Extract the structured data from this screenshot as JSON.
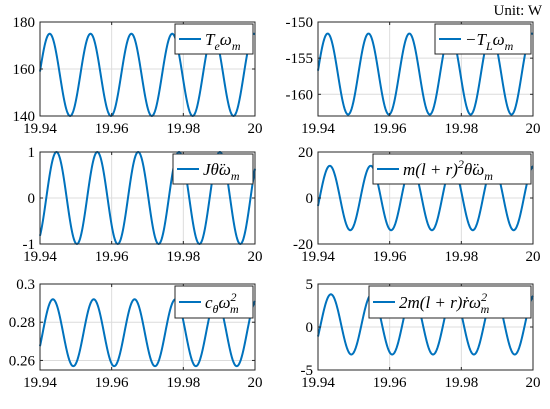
{
  "unit_label": "Unit: W",
  "series_color": "#0072BD",
  "chart_data": [
    {
      "type": "line",
      "legend": "T_e ω_m",
      "legend_parts": [
        {
          "t": "T"
        },
        {
          "t": "e",
          "sub": true
        },
        {
          "t": "ω"
        },
        {
          "t": "m",
          "sub": true
        }
      ],
      "xlim": [
        19.94,
        20.0
      ],
      "ylim": [
        140,
        180
      ],
      "xticks": [
        "19.94",
        "19.96",
        "19.98",
        "20"
      ],
      "xtick_values": [
        19.94,
        19.96,
        19.98,
        20.0
      ],
      "yticks": [
        "140",
        "160",
        "180"
      ],
      "ytick_values": [
        140,
        160,
        180
      ],
      "waveform": {
        "mean": 157.5,
        "amplitude": 17.5,
        "period": 0.0114,
        "peak_x": 19.9427
      },
      "grid": true
    },
    {
      "type": "line",
      "legend": "−T_L ω_m",
      "legend_parts": [
        {
          "t": "−T"
        },
        {
          "t": "L",
          "sub": true
        },
        {
          "t": "ω"
        },
        {
          "t": "m",
          "sub": true
        }
      ],
      "xlim": [
        19.94,
        20.0
      ],
      "ylim": [
        -163,
        -150
      ],
      "xticks": [
        "19.94",
        "19.96",
        "19.98",
        "20"
      ],
      "xtick_values": [
        19.94,
        19.96,
        19.98,
        20.0
      ],
      "yticks": [
        "-160",
        "-155",
        "-150"
      ],
      "ytick_values": [
        -160,
        -155,
        -150
      ],
      "waveform": {
        "mean": -157.2,
        "amplitude": 5.6,
        "period": 0.0114,
        "peak_x": 19.9427
      },
      "grid": true
    },
    {
      "type": "line",
      "legend": "J θ̈ ω_m",
      "legend_parts": [
        {
          "t": "J"
        },
        {
          "t": "θ̈"
        },
        {
          "t": "ω"
        },
        {
          "t": "m",
          "sub": true
        }
      ],
      "xlim": [
        19.94,
        20.0
      ],
      "ylim": [
        -1,
        1
      ],
      "xticks": [
        "19.94",
        "19.96",
        "19.98",
        "20"
      ],
      "xtick_values": [
        19.94,
        19.96,
        19.98,
        20.0
      ],
      "yticks": [
        "-1",
        "0",
        "1"
      ],
      "ytick_values": [
        -1,
        0,
        1
      ],
      "waveform": {
        "mean": 0,
        "amplitude": 1.0,
        "period": 0.0114,
        "peak_x": 19.9446
      },
      "grid": true
    },
    {
      "type": "line",
      "legend": "m(l + r)² θ̈ ω_m",
      "legend_parts": [
        {
          "t": "m(l + r)"
        },
        {
          "t": "2",
          "sup": true
        },
        {
          "t": "θ̈"
        },
        {
          "t": "ω"
        },
        {
          "t": "m",
          "sub": true
        }
      ],
      "xlim": [
        19.94,
        20.0
      ],
      "ylim": [
        -20,
        20
      ],
      "xticks": [
        "19.94",
        "19.96",
        "19.98",
        "20"
      ],
      "xtick_values": [
        19.94,
        19.96,
        19.98,
        20.0
      ],
      "yticks": [
        "-20",
        "0",
        "20"
      ],
      "ytick_values": [
        -20,
        0,
        20
      ],
      "waveform": {
        "mean": 0,
        "amplitude": 14.0,
        "period": 0.0114,
        "peak_x": 19.9433
      },
      "grid": true
    },
    {
      "type": "line",
      "legend": "c_θ ω_m²",
      "legend_parts": [
        {
          "t": "c"
        },
        {
          "t": "θ",
          "sub": true
        },
        {
          "t": "ω"
        },
        {
          "t": "2",
          "sup": true,
          "shift": true
        },
        {
          "t": "m",
          "sub": true
        }
      ],
      "xlim": [
        19.94,
        20.0
      ],
      "ylim": [
        0.255,
        0.3
      ],
      "xticks": [
        "19.94",
        "19.96",
        "19.98",
        "20"
      ],
      "xtick_values": [
        19.94,
        19.96,
        19.98,
        20.0
      ],
      "yticks": [
        "0.26",
        "0.28",
        "0.3"
      ],
      "ytick_values": [
        0.26,
        0.28,
        0.3
      ],
      "waveform": {
        "mean": 0.2745,
        "amplitude": 0.0175,
        "period": 0.0114,
        "peak_x": 19.9436
      },
      "grid": true
    },
    {
      "type": "line",
      "legend": "2m(l + r) ṙ ω_m²",
      "legend_parts": [
        {
          "t": "2m(l + r)"
        },
        {
          "t": "ṙ"
        },
        {
          "t": "ω"
        },
        {
          "t": "2",
          "sup": true,
          "shift": true
        },
        {
          "t": "m",
          "sub": true
        }
      ],
      "xlim": [
        19.94,
        20.0
      ],
      "ylim": [
        -5,
        5
      ],
      "xticks": [
        "19.94",
        "19.96",
        "19.98",
        "20"
      ],
      "xtick_values": [
        19.94,
        19.96,
        19.98,
        20.0
      ],
      "yticks": [
        "-5",
        "0",
        "5"
      ],
      "ytick_values": [
        -5,
        0,
        5
      ],
      "waveform": {
        "mean": 0.3,
        "amplitude": 3.5,
        "period": 0.0114,
        "peak_x": 19.9436
      },
      "grid": true
    }
  ]
}
